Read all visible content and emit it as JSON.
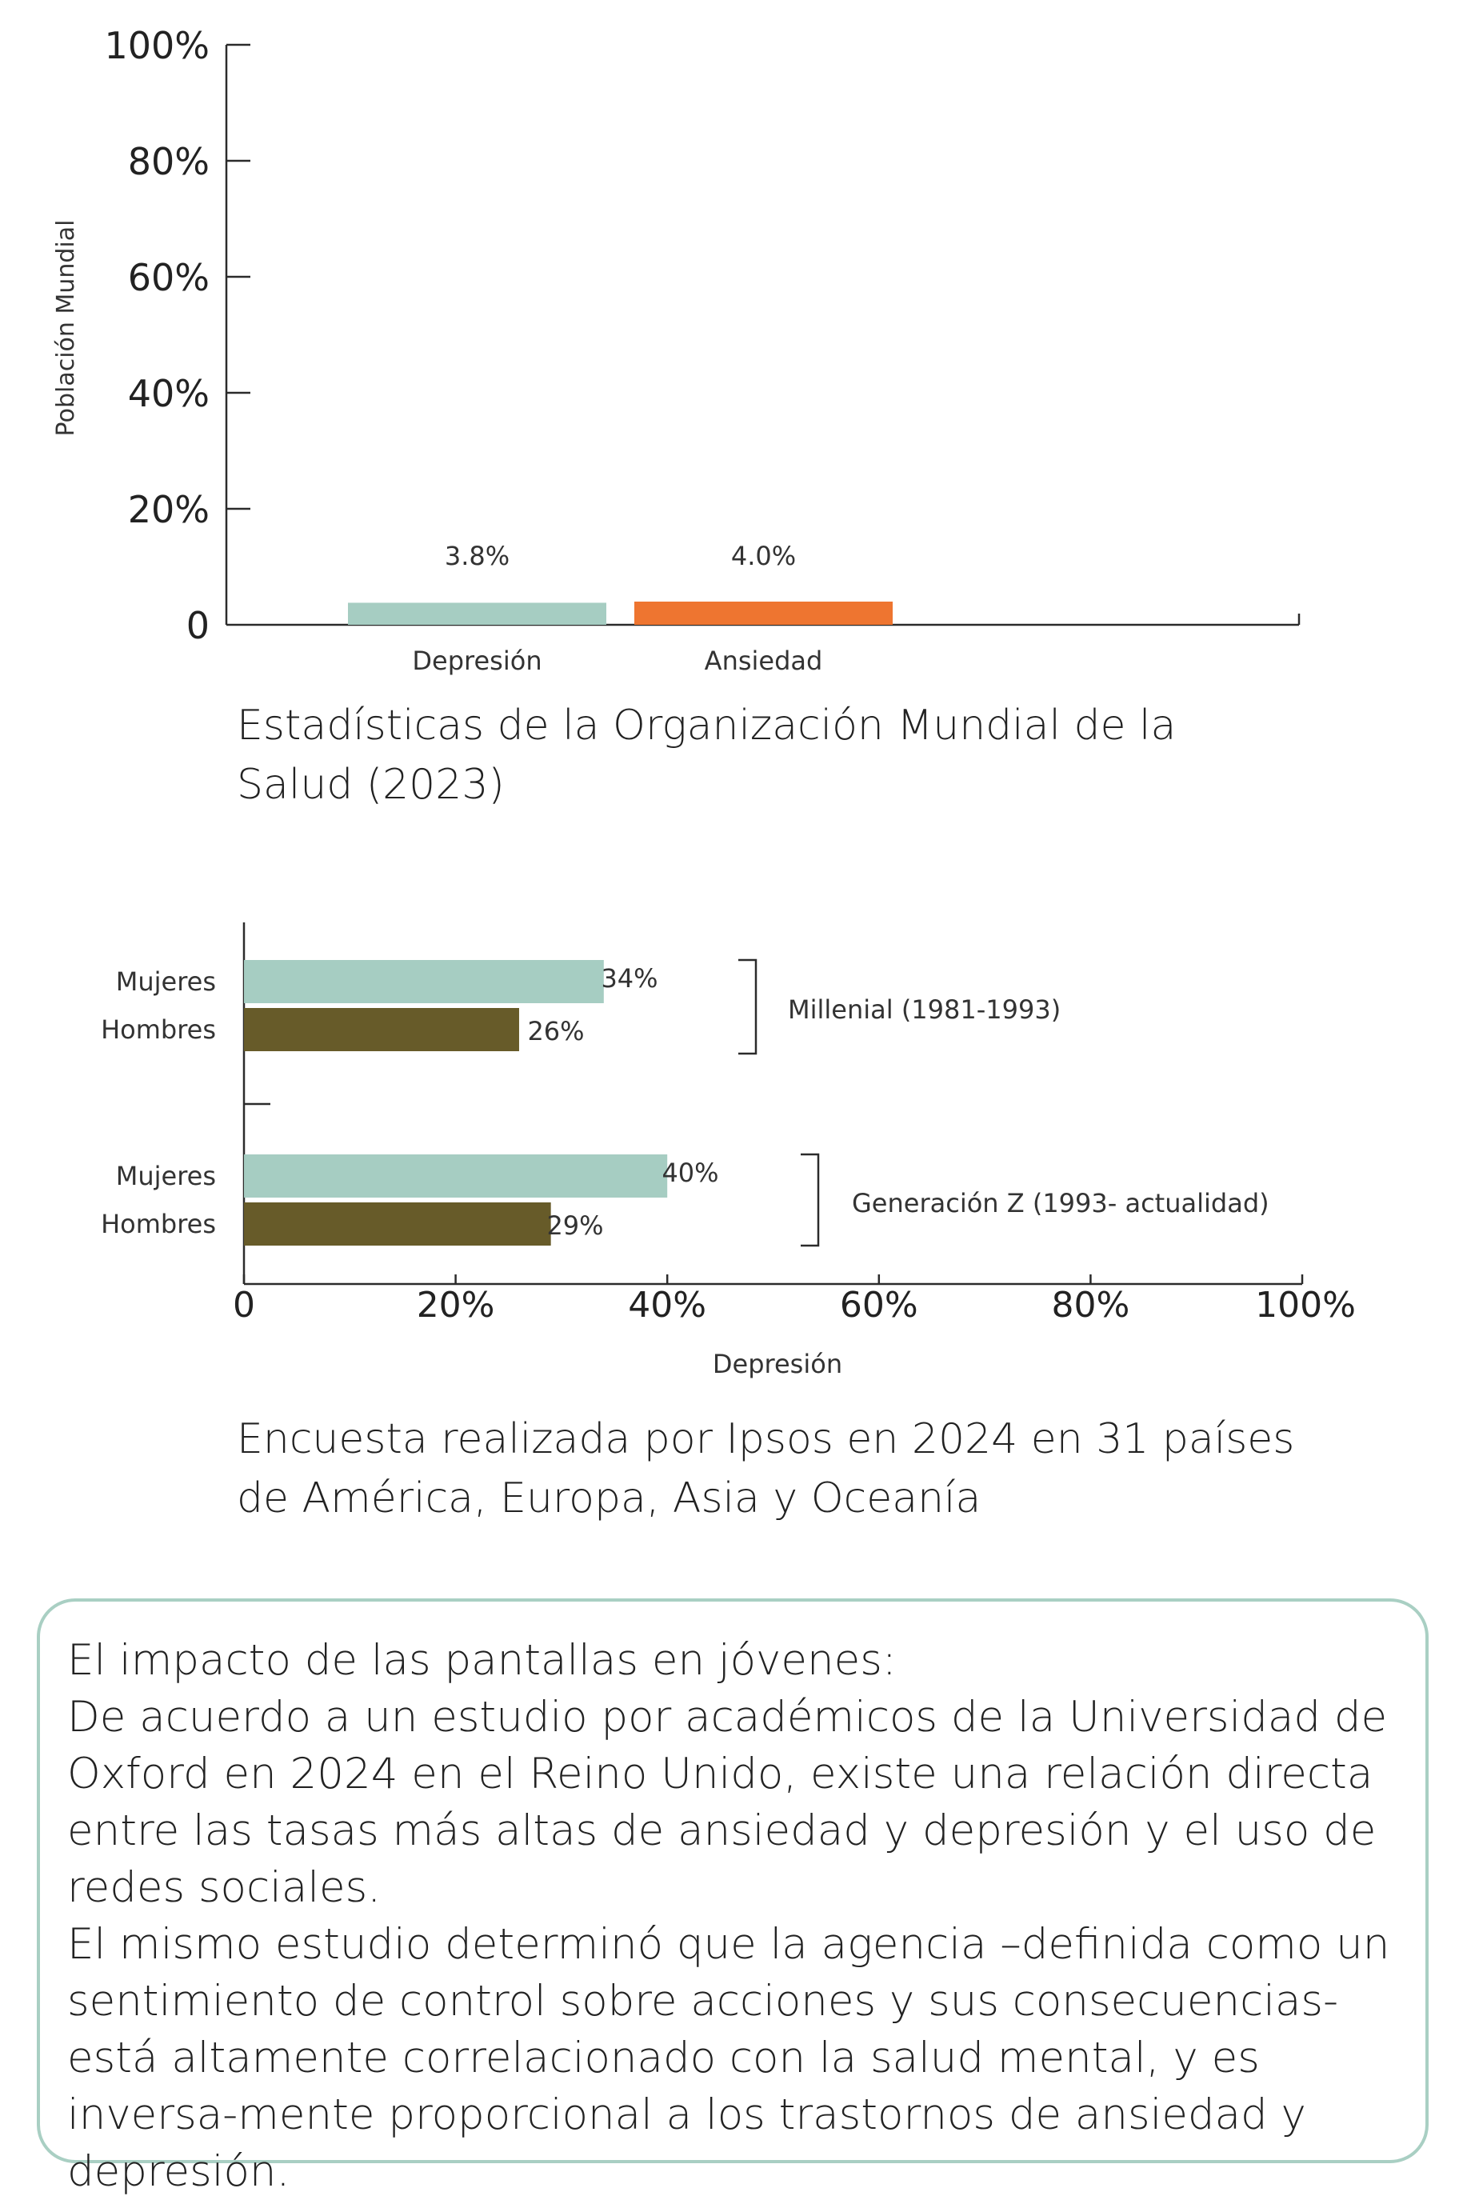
{
  "colors": {
    "teal": "#a6cdc2",
    "orange": "#ee7530",
    "olive": "#675b29",
    "axis": "#2b2b2b",
    "border": "#a9cfc3"
  },
  "chart_data": [
    {
      "type": "bar",
      "categories": [
        "Depresión",
        "Ansiedad"
      ],
      "values": [
        3.8,
        4.0
      ],
      "value_labels": [
        "3.8%",
        "4.0%"
      ],
      "ylabel": "Población Mundial",
      "ylim": [
        0,
        100
      ],
      "yticks": [
        "0",
        "20%",
        "40%",
        "60%",
        "80%",
        "100%"
      ],
      "bar_colors": [
        "#a6cdc2",
        "#ee7530"
      ]
    },
    {
      "type": "bar",
      "orientation": "horizontal",
      "xlabel": "Depresión",
      "xlim": [
        0,
        100
      ],
      "xticks": [
        "0",
        "20%",
        "40%",
        "60%",
        "80%",
        "100%"
      ],
      "groups": [
        {
          "name": "Millenial (1981-1993)",
          "bars": [
            {
              "label": "Mujeres",
              "value": 34,
              "text": "34%",
              "color": "#a6cdc2"
            },
            {
              "label": "Hombres",
              "value": 26,
              "text": "26%",
              "color": "#675b29"
            }
          ]
        },
        {
          "name": "Generación Z (1993- actualidad)",
          "bars": [
            {
              "label": "Mujeres",
              "value": 40,
              "text": "40%",
              "color": "#a6cdc2"
            },
            {
              "label": "Hombres",
              "value": 29,
              "text": "29%",
              "color": "#675b29"
            }
          ]
        }
      ]
    }
  ],
  "captions": {
    "who": "Estadísticas de la Organización Mundial de la\nSalud (2023)",
    "ipsos": " Encuesta realizada por Ipsos en 2024 en 31 países\nde América, Europa, Asia y Oceanía"
  },
  "info": {
    "heading": "El impacto de las pantallas en jóvenes:",
    "paragraph1": "De acuerdo a un estudio por académicos de la Universidad de Oxford en 2024 en el Reino Unido, existe una relación directa entre las tasas más altas de ansiedad y depresión y el uso de redes sociales.",
    "paragraph2": "El mismo estudio determinó que la agencia –definida como un sentimiento de control sobre acciones y sus consecuencias- está altamente correlacionado con la salud mental, y es inversa-mente proporcional a los trastornos de ansiedad y depresión."
  }
}
